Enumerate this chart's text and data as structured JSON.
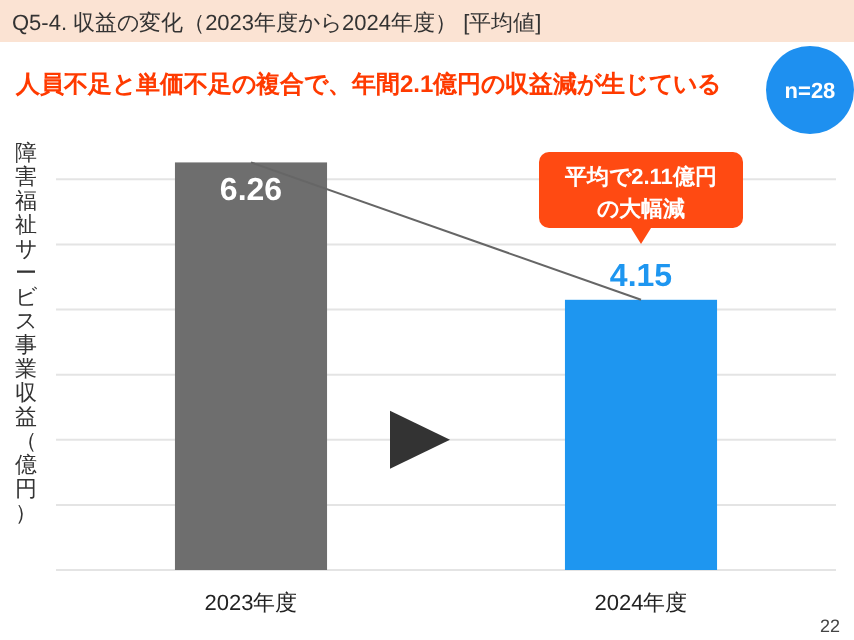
{
  "chart_data": {
    "type": "bar",
    "title": "Q5-4. 収益の変化（2023年度から2024年度） [平均値]",
    "subtitle": "人員不足と単価不足の複合で、年間2.1億円の収益減が生じている",
    "ylabel": "障害福祉サービス事業収益（億円）",
    "categories": [
      "2023年度",
      "2024年度"
    ],
    "values": [
      6.26,
      4.15
    ],
    "colors": [
      "#6e6e6e",
      "#1e96f0"
    ],
    "data_labels": true,
    "yticks": [
      {
        "value": 0,
        "label": null
      },
      {
        "value": 1,
        "label": null
      },
      {
        "value": 2,
        "label": null
      },
      {
        "value": 3,
        "label": null
      },
      {
        "value": 4,
        "label": null
      },
      {
        "value": 5,
        "label": null
      },
      {
        "value": 6,
        "label": null
      }
    ],
    "tick_labels": "x",
    "grid": "y",
    "series": [
      {
        "type": "line",
        "color": "#666666",
        "values": [
          6.26,
          4.15
        ],
        "value_labels": [
          null,
          null
        ]
      }
    ],
    "annotations": [
      "平均で2.11億円の大幅減",
      "n=28",
      "22"
    ]
  }
}
